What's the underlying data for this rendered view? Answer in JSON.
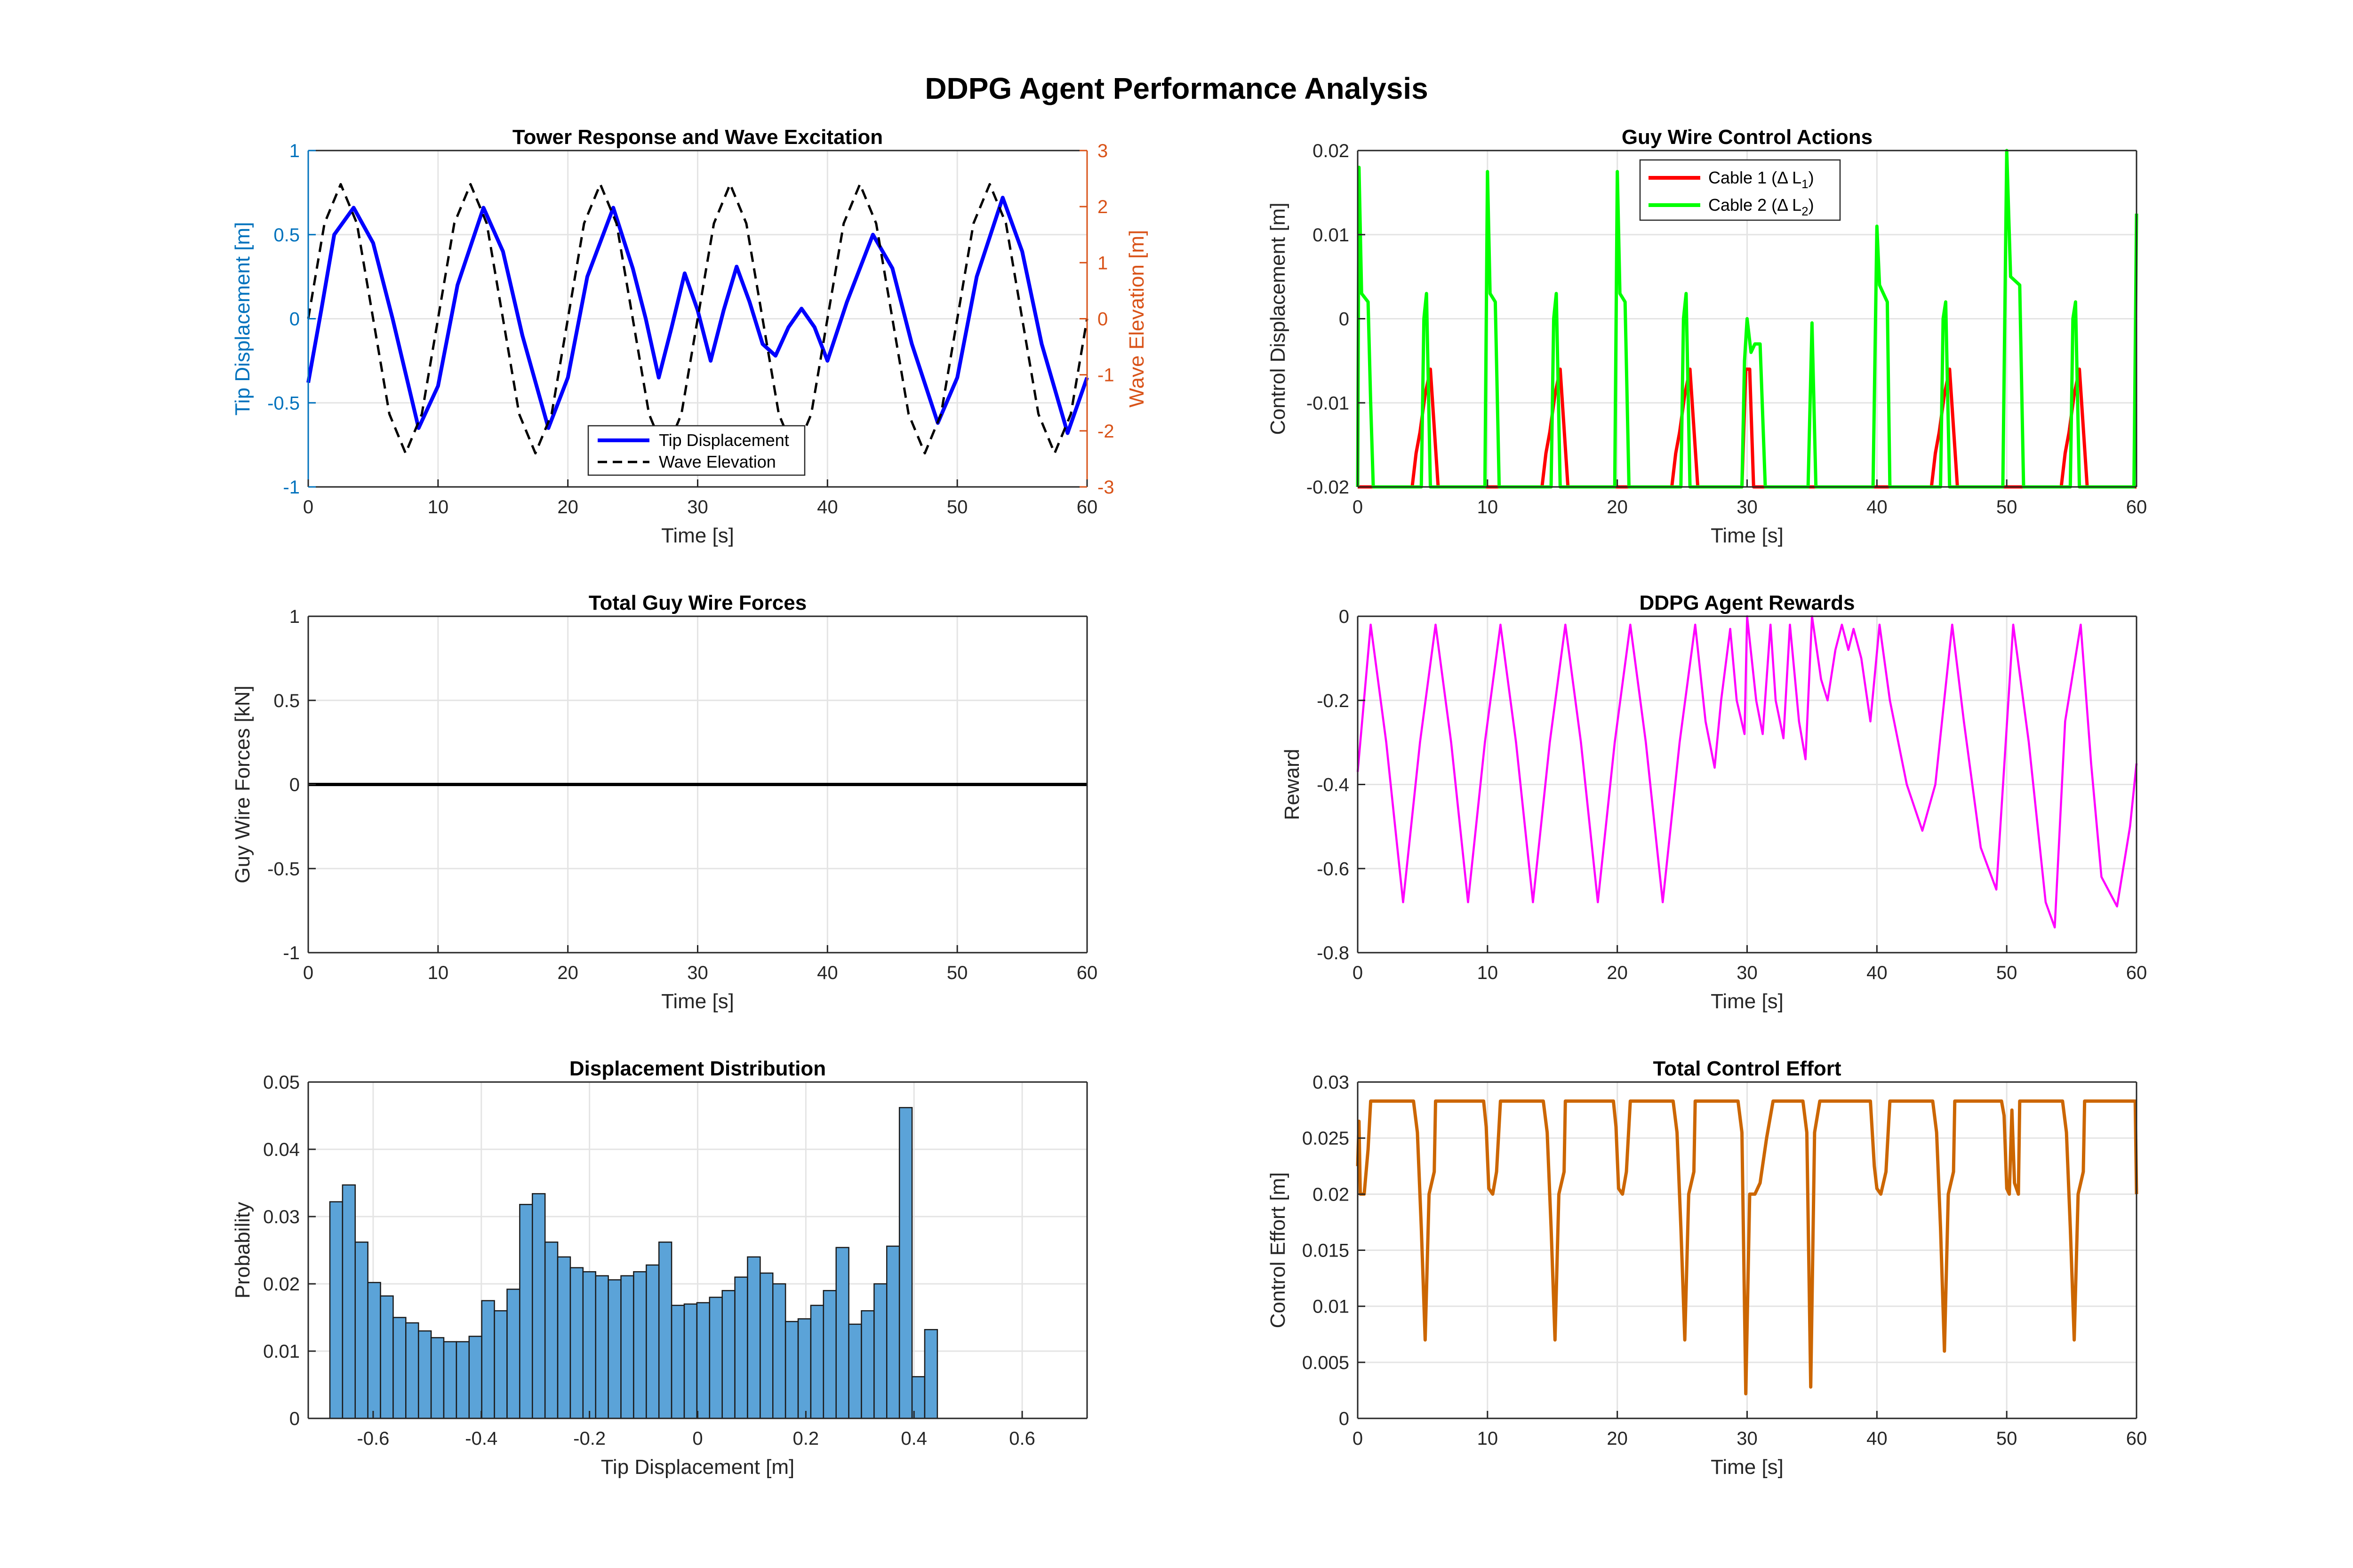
{
  "suptitle": "DDPG Agent Performance Analysis",
  "colors": {
    "tip": "#0000ff",
    "wave": "#000000",
    "left_axis": "#0072bd",
    "right_axis": "#d95319",
    "cable1": "#ff0000",
    "cable2": "#00ff00",
    "reward": "#ff00ff",
    "effort": "#cc6600",
    "hist_face": "#5ba3d8",
    "forces": "#000000"
  },
  "chart_data": [
    {
      "id": "tower",
      "type": "line",
      "title": "Tower Response and Wave Excitation",
      "xlabel": "Time [s]",
      "ylabel": "Tip Displacement [m]",
      "ylabel_right": "Wave Elevation [m]",
      "xlim": [
        0,
        60
      ],
      "ylim": [
        -1,
        1
      ],
      "ylim_right": [
        -3,
        3
      ],
      "xticks": [
        "0",
        "10",
        "20",
        "30",
        "40",
        "50",
        "60"
      ],
      "yticks": [
        "-1",
        "-0.5",
        "0",
        "0.5",
        "1"
      ],
      "yticks_right": [
        "-3",
        "-2",
        "-1",
        "0",
        "1",
        "2",
        "3"
      ],
      "grid": true,
      "legend": "bottom-center",
      "series": [
        {
          "name": "Tip Displacement",
          "axis": "left",
          "style": "solid",
          "x": [
            0,
            1,
            2,
            3.5,
            5,
            6.5,
            8.5,
            10,
            11.5,
            13.5,
            15,
            16.5,
            18.5,
            20,
            21.5,
            23.5,
            25,
            26,
            27,
            28,
            29,
            30,
            31,
            32,
            33,
            34,
            35,
            36,
            37,
            38,
            39,
            40,
            41.5,
            43.5,
            45,
            46.5,
            48.5,
            50,
            51.5,
            53.5,
            55,
            56.5,
            58.5,
            60
          ],
          "y": [
            -0.38,
            0.05,
            0.5,
            0.66,
            0.45,
            0.0,
            -0.65,
            -0.4,
            0.2,
            0.66,
            0.4,
            -0.1,
            -0.65,
            -0.35,
            0.25,
            0.66,
            0.3,
            0.0,
            -0.35,
            -0.05,
            0.27,
            0.05,
            -0.25,
            0.05,
            0.31,
            0.1,
            -0.15,
            -0.22,
            -0.05,
            0.06,
            -0.05,
            -0.25,
            0.1,
            0.5,
            0.3,
            -0.15,
            -0.62,
            -0.35,
            0.25,
            0.72,
            0.4,
            -0.15,
            -0.68,
            -0.35
          ]
        },
        {
          "name": "Wave Elevation",
          "axis": "right",
          "style": "dashed",
          "x": [
            0,
            1.25,
            2.5,
            3.75,
            5,
            6.25,
            7.5,
            8.75,
            10,
            11.25,
            12.5,
            13.75,
            15,
            16.25,
            17.5,
            18.75,
            20,
            21.25,
            22.5,
            23.75,
            25,
            26.25,
            27.5,
            28.75,
            30,
            31.25,
            32.5,
            33.75,
            35,
            36.25,
            37.5,
            38.75,
            40,
            41.25,
            42.5,
            43.75,
            45,
            46.25,
            47.5,
            48.75,
            50,
            51.25,
            52.5,
            53.75,
            55,
            56.25,
            57.5,
            58.75,
            60
          ],
          "y": [
            0,
            1.7,
            2.4,
            1.7,
            0,
            -1.7,
            -2.4,
            -1.7,
            0,
            1.7,
            2.4,
            1.7,
            0,
            -1.7,
            -2.4,
            -1.7,
            0,
            1.7,
            2.4,
            1.7,
            0,
            -1.7,
            -2.4,
            -1.7,
            0,
            1.7,
            2.4,
            1.7,
            0,
            -1.7,
            -2.4,
            -1.7,
            0,
            1.7,
            2.4,
            1.7,
            0,
            -1.7,
            -2.4,
            -1.7,
            0,
            1.7,
            2.4,
            1.7,
            0,
            -1.7,
            -2.4,
            -1.7,
            0
          ]
        }
      ]
    },
    {
      "id": "control",
      "type": "line",
      "title": "Guy Wire Control Actions",
      "xlabel": "Time [s]",
      "ylabel": "Control Displacement [m]",
      "xlim": [
        0,
        60
      ],
      "ylim": [
        -0.02,
        0.02
      ],
      "xticks": [
        "0",
        "10",
        "20",
        "30",
        "40",
        "50",
        "60"
      ],
      "yticks": [
        "-0.02",
        "-0.01",
        "0",
        "0.01",
        "0.02"
      ],
      "grid": true,
      "legend": "top-center",
      "legend_labels": [
        {
          "base": "Cable 1 (Δ L",
          "sub": "1",
          "end": ")"
        },
        {
          "base": "Cable 2 (Δ L",
          "sub": "2",
          "end": ")"
        }
      ],
      "series": [
        {
          "name": "Cable 1",
          "x": [
            0,
            4.2,
            4.5,
            4.8,
            5.2,
            5.6,
            6.2,
            14.2,
            14.5,
            14.8,
            15.2,
            15.6,
            16.2,
            24.2,
            24.5,
            24.8,
            25.2,
            25.6,
            26.2,
            29.6,
            29.9,
            30.2,
            30.5,
            44.2,
            44.5,
            44.8,
            45.2,
            45.6,
            46.2,
            54.2,
            54.5,
            54.8,
            55.2,
            55.6,
            56.2,
            60
          ],
          "y": [
            -0.02,
            -0.02,
            -0.016,
            -0.0135,
            -0.009,
            -0.006,
            -0.02,
            -0.02,
            -0.016,
            -0.0135,
            -0.009,
            -0.006,
            -0.02,
            -0.02,
            -0.016,
            -0.0135,
            -0.009,
            -0.006,
            -0.02,
            -0.02,
            -0.006,
            -0.006,
            -0.02,
            -0.02,
            -0.016,
            -0.0135,
            -0.009,
            -0.006,
            -0.02,
            -0.02,
            -0.016,
            -0.0135,
            -0.009,
            -0.006,
            -0.02,
            -0.02
          ]
        },
        {
          "name": "Cable 2",
          "x": [
            0,
            0.1,
            0.3,
            0.8,
            1.0,
            1.2,
            4.9,
            5.1,
            5.3,
            5.6,
            9.8,
            10.0,
            10.2,
            10.6,
            10.9,
            14.9,
            15.1,
            15.3,
            15.6,
            19.8,
            20.0,
            20.2,
            20.6,
            20.9,
            24.9,
            25.1,
            25.3,
            25.6,
            29.6,
            29.8,
            30.0,
            30.3,
            30.6,
            31.0,
            31.4,
            31.7,
            34.7,
            35.0,
            35.3,
            39.7,
            40.0,
            40.2,
            40.5,
            40.8,
            41.0,
            44.9,
            45.1,
            45.3,
            45.6,
            49.7,
            50.0,
            50.3,
            51.0,
            51.3,
            54.9,
            55.1,
            55.3,
            55.6,
            59.8,
            60.0
          ],
          "y": [
            -0.02,
            0.018,
            0.003,
            0.002,
            -0.01,
            -0.02,
            -0.02,
            0.0,
            0.003,
            -0.02,
            -0.02,
            0.0175,
            0.003,
            0.002,
            -0.02,
            -0.02,
            0.0,
            0.003,
            -0.02,
            -0.02,
            0.0175,
            0.003,
            0.002,
            -0.02,
            -0.02,
            0.0,
            0.003,
            -0.02,
            -0.02,
            -0.005,
            0.0,
            -0.004,
            -0.003,
            -0.003,
            -0.02,
            -0.02,
            -0.02,
            -0.0005,
            -0.02,
            -0.02,
            0.011,
            0.004,
            0.003,
            0.002,
            -0.02,
            -0.02,
            0.0,
            0.002,
            -0.02,
            -0.02,
            0.02,
            0.005,
            0.004,
            -0.02,
            -0.02,
            0.0,
            0.002,
            -0.02,
            -0.02,
            0.0125
          ]
        }
      ]
    },
    {
      "id": "forces",
      "type": "line",
      "title": "Total Guy Wire Forces",
      "xlabel": "Time [s]",
      "ylabel": "Guy Wire Forces [kN]",
      "xlim": [
        0,
        60
      ],
      "ylim": [
        -1,
        1
      ],
      "xticks": [
        "0",
        "10",
        "20",
        "30",
        "40",
        "50",
        "60"
      ],
      "yticks": [
        "-1",
        "-0.5",
        "0",
        "0.5",
        "1"
      ],
      "grid": true,
      "series": [
        {
          "x": [
            0,
            60
          ],
          "y": [
            0,
            0
          ]
        }
      ]
    },
    {
      "id": "rewards",
      "type": "line",
      "title": "DDPG Agent Rewards",
      "xlabel": "Time [s]",
      "ylabel": "Reward",
      "xlim": [
        0,
        60
      ],
      "ylim": [
        -0.8,
        0
      ],
      "xticks": [
        "0",
        "10",
        "20",
        "30",
        "40",
        "50",
        "60"
      ],
      "yticks": [
        "-0.8",
        "-0.6",
        "-0.4",
        "-0.2",
        "0"
      ],
      "grid": true,
      "series": [
        {
          "x": [
            0,
            1.0,
            2.2,
            3.5,
            4.8,
            6.0,
            7.2,
            8.5,
            9.8,
            11.0,
            12.2,
            13.5,
            14.8,
            16.0,
            17.2,
            18.5,
            19.8,
            21.0,
            22.2,
            23.5,
            24.8,
            26.0,
            26.8,
            27.5,
            28.0,
            28.7,
            29.2,
            29.8,
            30.0,
            30.7,
            31.2,
            31.8,
            32.2,
            32.8,
            33.3,
            34.0,
            34.5,
            35.0,
            35.7,
            36.2,
            36.8,
            37.3,
            37.8,
            38.2,
            38.8,
            39.5,
            40.2,
            41.0,
            42.3,
            43.5,
            44.5,
            45.8,
            46.7,
            48.0,
            49.2,
            50.5,
            51.7,
            53.0,
            53.7,
            54.5,
            55.7,
            56.5,
            57.3,
            58.5,
            59.5,
            60
          ],
          "y": [
            -0.37,
            -0.02,
            -0.3,
            -0.68,
            -0.3,
            -0.02,
            -0.3,
            -0.68,
            -0.3,
            -0.02,
            -0.3,
            -0.68,
            -0.3,
            -0.02,
            -0.3,
            -0.68,
            -0.3,
            -0.02,
            -0.3,
            -0.68,
            -0.3,
            -0.02,
            -0.25,
            -0.36,
            -0.2,
            -0.03,
            -0.2,
            -0.28,
            0.0,
            -0.2,
            -0.28,
            -0.02,
            -0.2,
            -0.29,
            -0.02,
            -0.25,
            -0.34,
            0.0,
            -0.15,
            -0.2,
            -0.08,
            -0.02,
            -0.08,
            -0.03,
            -0.1,
            -0.25,
            -0.02,
            -0.2,
            -0.4,
            -0.51,
            -0.4,
            -0.02,
            -0.25,
            -0.55,
            -0.65,
            -0.02,
            -0.3,
            -0.68,
            -0.74,
            -0.25,
            -0.02,
            -0.35,
            -0.62,
            -0.69,
            -0.5,
            -0.35
          ]
        }
      ]
    },
    {
      "id": "histogram",
      "type": "bar",
      "title": "Displacement Distribution",
      "xlabel": "Tip Displacement [m]",
      "ylabel": "Probability",
      "xlim": [
        -0.72,
        0.72
      ],
      "ylim": [
        0,
        0.05
      ],
      "xticks": [
        "-0.6",
        "-0.4",
        "-0.2",
        "0",
        "0.2",
        "0.4",
        "0.6"
      ],
      "xtick_values": [
        -0.6,
        -0.4,
        -0.2,
        0,
        0.2,
        0.4,
        0.6
      ],
      "yticks": [
        "0",
        "0.01",
        "0.02",
        "0.03",
        "0.04",
        "0.05"
      ],
      "grid": true,
      "bin_start": -0.68,
      "bin_width": 0.0234,
      "values": [
        0.0322,
        0.0347,
        0.0262,
        0.0202,
        0.0182,
        0.015,
        0.0142,
        0.013,
        0.012,
        0.0114,
        0.0114,
        0.0122,
        0.0175,
        0.016,
        0.0192,
        0.0318,
        0.0334,
        0.0262,
        0.024,
        0.0224,
        0.0218,
        0.0212,
        0.0206,
        0.0212,
        0.0218,
        0.0228,
        0.0262,
        0.0168,
        0.017,
        0.0172,
        0.018,
        0.019,
        0.021,
        0.024,
        0.0216,
        0.02,
        0.0144,
        0.0148,
        0.0168,
        0.019,
        0.0254,
        0.014,
        0.016,
        0.02,
        0.0256,
        0.0462,
        0.0062,
        0.0132
      ]
    },
    {
      "id": "effort",
      "type": "line",
      "title": "Total Control Effort",
      "xlabel": "Time [s]",
      "ylabel": "Control Effort [m]",
      "xlim": [
        0,
        60
      ],
      "ylim": [
        0,
        0.03
      ],
      "xticks": [
        "0",
        "10",
        "20",
        "30",
        "40",
        "50",
        "60"
      ],
      "yticks": [
        "0",
        "0.005",
        "0.01",
        "0.015",
        "0.02",
        "0.025",
        "0.03"
      ],
      "grid": true,
      "series": [
        {
          "x": [
            0,
            0.1,
            0.2,
            0.5,
            0.8,
            1.0,
            4.3,
            4.6,
            4.9,
            5.2,
            5.5,
            5.9,
            6.0,
            9.7,
            9.9,
            10.1,
            10.4,
            10.7,
            11.0,
            14.3,
            14.6,
            14.9,
            15.2,
            15.5,
            15.9,
            16.0,
            19.7,
            19.9,
            20.1,
            20.4,
            20.7,
            21.0,
            24.3,
            24.6,
            24.9,
            25.2,
            25.5,
            25.9,
            26.0,
            29.3,
            29.6,
            29.9,
            30.2,
            30.6,
            31.0,
            31.5,
            32.0,
            34.3,
            34.6,
            34.9,
            35.2,
            35.6,
            39.5,
            39.8,
            40.0,
            40.3,
            40.7,
            41.0,
            44.3,
            44.6,
            44.9,
            45.2,
            45.5,
            45.9,
            46.0,
            49.6,
            49.8,
            50.0,
            50.2,
            50.4,
            50.6,
            50.9,
            51.0,
            54.3,
            54.6,
            54.9,
            55.2,
            55.5,
            55.9,
            56.0,
            59.7,
            59.9,
            60.0
          ],
          "y": [
            0.0225,
            0.0265,
            0.02,
            0.02,
            0.024,
            0.0283,
            0.0283,
            0.0255,
            0.017,
            0.007,
            0.02,
            0.022,
            0.0283,
            0.0283,
            0.026,
            0.0205,
            0.02,
            0.022,
            0.0283,
            0.0283,
            0.0255,
            0.017,
            0.007,
            0.02,
            0.022,
            0.0283,
            0.0283,
            0.026,
            0.0205,
            0.02,
            0.022,
            0.0283,
            0.0283,
            0.0255,
            0.017,
            0.007,
            0.02,
            0.022,
            0.0283,
            0.0283,
            0.0255,
            0.0022,
            0.02,
            0.02,
            0.021,
            0.025,
            0.0283,
            0.0283,
            0.0255,
            0.0028,
            0.0255,
            0.0283,
            0.0283,
            0.0225,
            0.0205,
            0.02,
            0.022,
            0.0283,
            0.0283,
            0.0255,
            0.017,
            0.006,
            0.02,
            0.022,
            0.0283,
            0.0283,
            0.027,
            0.0205,
            0.02,
            0.0275,
            0.021,
            0.02,
            0.0283,
            0.0283,
            0.0255,
            0.017,
            0.007,
            0.02,
            0.022,
            0.0283,
            0.0283,
            0.0283,
            0.02
          ]
        }
      ]
    }
  ]
}
